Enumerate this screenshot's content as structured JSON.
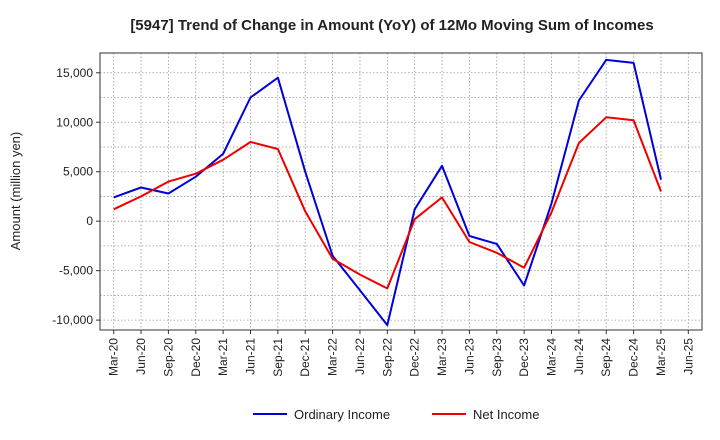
{
  "chart_data": {
    "type": "line",
    "title": "[5947]  Trend of Change in Amount (YoY) of 12Mo Moving Sum of Incomes",
    "ylabel": "Amount (million yen)",
    "xlabel": "",
    "ylim": [
      -11000,
      17000
    ],
    "yticks": [
      -10000,
      -5000,
      0,
      5000,
      10000,
      15000
    ],
    "ytick_labels": [
      "-10,000",
      "-5,000",
      "0",
      "5,000",
      "10,000",
      "15,000"
    ],
    "x_tick_labels": [
      "Mar-20",
      "Jun-20",
      "Sep-20",
      "Dec-20",
      "Mar-21",
      "Jun-21",
      "Sep-21",
      "Dec-21",
      "Mar-22",
      "Jun-22",
      "Sep-22",
      "Dec-22",
      "Mar-23",
      "Jun-23",
      "Sep-23",
      "Dec-23",
      "Mar-24",
      "Jun-24",
      "Sep-24",
      "Dec-24",
      "Mar-25",
      "Jun-25"
    ],
    "grid": true,
    "legend_position": "bottom",
    "series": [
      {
        "name": "Ordinary Income",
        "color": "#0000dd",
        "values": [
          2400,
          3400,
          2800,
          4500,
          6800,
          12500,
          14500,
          5000,
          -3500,
          -7000,
          -10500,
          1200,
          5600,
          -1500,
          -2300,
          -6500,
          1800,
          12200,
          16300,
          16000,
          4200
        ]
      },
      {
        "name": "Net Income",
        "color": "#ee0000",
        "values": [
          1200,
          2500,
          4000,
          4800,
          6200,
          8000,
          7300,
          1000,
          -3800,
          -5400,
          -6800,
          200,
          2400,
          -2100,
          -3200,
          -4700,
          900,
          7900,
          10500,
          10200,
          3000
        ]
      }
    ]
  }
}
